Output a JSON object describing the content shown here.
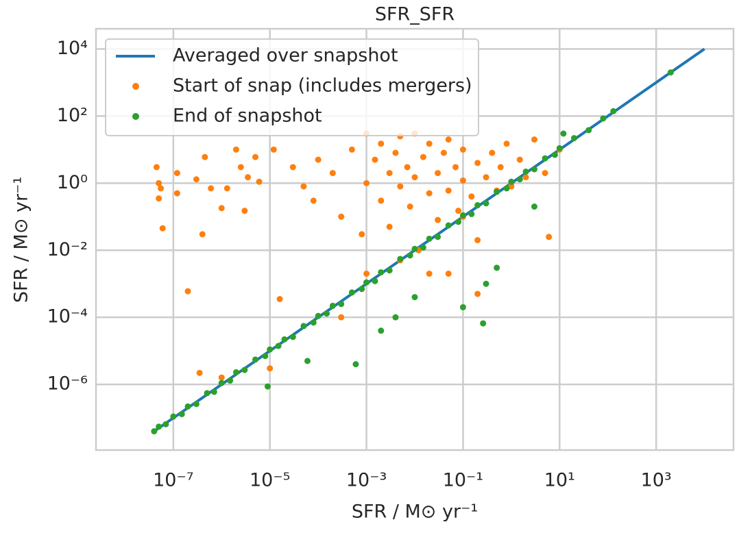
{
  "chart_data": {
    "type": "scatter",
    "title": "SFR_SFR",
    "xlabel": "SFR / M⊙ yr⁻¹",
    "ylabel": "SFR / M⊙ yr⁻¹",
    "xscale": "log",
    "yscale": "log",
    "grid": true,
    "legend": "upper left",
    "xlim": [
      2.5e-09,
      40000.0
    ],
    "ylim": [
      1.1e-08,
      40000.0
    ],
    "xticks": [
      {
        "value": 1e-07,
        "label": "10⁻⁷"
      },
      {
        "value": 1e-05,
        "label": "10⁻⁵"
      },
      {
        "value": 0.001,
        "label": "10⁻³"
      },
      {
        "value": 0.1,
        "label": "10⁻¹"
      },
      {
        "value": 10,
        "label": "10¹"
      },
      {
        "value": 1000,
        "label": "10³"
      }
    ],
    "yticks": [
      {
        "value": 1e-06,
        "label": "10⁻⁶"
      },
      {
        "value": 0.0001,
        "label": "10⁻⁴"
      },
      {
        "value": 0.01,
        "label": "10⁻²"
      },
      {
        "value": 1,
        "label": "10⁰"
      },
      {
        "value": 100,
        "label": "10²"
      },
      {
        "value": 10000,
        "label": "10⁴"
      }
    ],
    "series": [
      {
        "name": "Averaged over snapshot",
        "type": "line",
        "color": "#1f77b4",
        "x": [
          4e-08,
          10000
        ],
        "values": [
          4e-08,
          10000
        ]
      },
      {
        "name": "Start of snap (includes mergers)",
        "type": "scatter",
        "color": "#ff7f0e",
        "x": [
          4.5e-08,
          5e-08,
          5.5e-08,
          5e-08,
          6e-08,
          1.2e-07,
          1.2e-07,
          2e-07,
          3e-07,
          3.5e-07,
          4e-07,
          4.5e-07,
          6e-07,
          1e-06,
          1e-06,
          1.3e-06,
          2e-06,
          2.5e-06,
          3e-06,
          3.5e-06,
          5e-06,
          6e-06,
          1.2e-05,
          1.6e-05,
          3e-05,
          5e-05,
          8e-05,
          0.0001,
          0.0002,
          0.0003,
          0.0005,
          0.0008,
          0.001,
          0.001,
          0.0015,
          0.002,
          0.002,
          0.003,
          0.003,
          0.004,
          0.005,
          0.005,
          0.007,
          0.008,
          0.01,
          0.01,
          0.012,
          0.015,
          0.02,
          0.02,
          0.03,
          0.03,
          0.04,
          0.05,
          0.05,
          0.07,
          0.08,
          0.1,
          0.1,
          0.15,
          0.2,
          0.2,
          0.3,
          0.4,
          0.5,
          0.6,
          0.8,
          1,
          1.5,
          2,
          3,
          5,
          6,
          0.001,
          0.005,
          0.05,
          0.2,
          0.02,
          0.0003,
          1e-05,
          0.1,
          1,
          10
        ],
        "values": [
          3,
          1,
          0.7,
          0.35,
          0.045,
          2,
          0.5,
          0.0006,
          1.3,
          2.2e-06,
          0.03,
          6,
          0.7,
          0.18,
          1.6e-06,
          0.7,
          10,
          3,
          0.15,
          1.5,
          6,
          1.1,
          10,
          0.00035,
          3,
          0.8,
          0.3,
          5,
          2,
          0.1,
          10,
          0.03,
          30,
          1,
          5,
          0.3,
          15,
          2,
          0.05,
          8,
          0.8,
          25,
          3,
          0.2,
          30,
          1.5,
          0.01,
          6,
          0.5,
          15,
          2,
          0.08,
          8,
          0.6,
          20,
          3,
          0.15,
          1.2,
          10,
          0.4,
          4,
          0.02,
          1.5,
          8,
          0.6,
          3,
          15,
          0.8,
          5,
          1.5,
          20,
          2,
          0.025,
          0.002,
          0.005,
          0.002,
          0.0005,
          0.002,
          0.0001,
          3e-06,
          0.1,
          1,
          10
        ]
      },
      {
        "name": "End of snapshot",
        "type": "scatter",
        "color": "#2ca02c",
        "x": [
          4e-08,
          5e-08,
          7e-08,
          1e-07,
          1.5e-07,
          2e-07,
          3e-07,
          5e-07,
          7e-07,
          1e-06,
          1.5e-06,
          2e-06,
          3e-06,
          5e-06,
          8e-06,
          9e-06,
          1e-05,
          1.5e-05,
          2e-05,
          3e-05,
          5e-05,
          6e-05,
          8e-05,
          0.0001,
          0.00015,
          0.0002,
          0.0003,
          0.0005,
          0.0006,
          0.0008,
          0.001,
          0.0015,
          0.002,
          0.002,
          0.003,
          0.004,
          0.005,
          0.008,
          0.01,
          0.01,
          0.015,
          0.02,
          0.03,
          0.05,
          0.08,
          0.1,
          0.1,
          0.15,
          0.2,
          0.26,
          0.3,
          0.3,
          0.5,
          0.5,
          0.8,
          1,
          1.5,
          2,
          3,
          3,
          5,
          8,
          10,
          12,
          20,
          40,
          80,
          130,
          2000
        ],
        "values": [
          4e-08,
          5.5e-08,
          6.5e-08,
          1.1e-07,
          1.3e-07,
          2.2e-07,
          2.6e-07,
          5.5e-07,
          6e-07,
          1.1e-06,
          1.3e-06,
          2.3e-06,
          2.7e-06,
          5.5e-06,
          7e-06,
          8.7e-07,
          1.1e-05,
          1.4e-05,
          2.2e-05,
          2.6e-05,
          5.5e-05,
          5e-06,
          7e-05,
          0.00011,
          0.00013,
          0.00022,
          0.00025,
          0.00055,
          4e-06,
          0.0007,
          0.0011,
          0.0012,
          4e-05,
          0.0022,
          0.0025,
          0.0001,
          0.0055,
          0.007,
          0.0004,
          0.011,
          0.012,
          0.022,
          0.025,
          0.055,
          0.07,
          0.11,
          0.0002,
          0.12,
          0.22,
          6.6e-05,
          0.001,
          0.25,
          0.003,
          0.55,
          0.7,
          1.1,
          1.3,
          2.2,
          0.2,
          2.6,
          5.5,
          7,
          11,
          30,
          22,
          38,
          85,
          140,
          2000
        ]
      }
    ]
  }
}
